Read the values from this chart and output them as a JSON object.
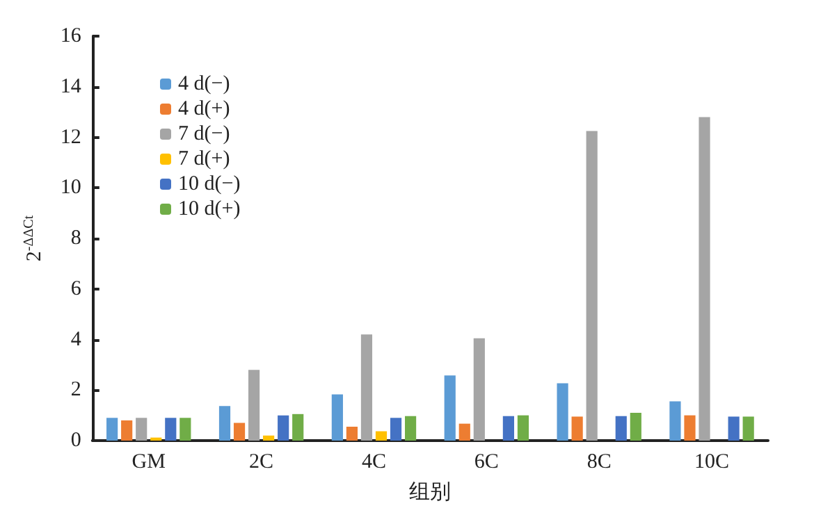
{
  "chart_data": {
    "type": "bar",
    "xlabel": "组别",
    "ylabel": "2$^{-ΔΔCt}$",
    "categories": [
      "GM",
      "2C",
      "4C",
      "6C",
      "8C",
      "10C"
    ],
    "series": [
      {
        "name": "4 d(−)",
        "color": "#5b9bd5",
        "values": [
          0.9,
          1.37,
          1.83,
          2.58,
          2.27,
          1.55
        ]
      },
      {
        "name": "4 d(+)",
        "color": "#ed7d31",
        "values": [
          0.8,
          0.7,
          0.55,
          0.67,
          0.95,
          1.0
        ]
      },
      {
        "name": "7 d(−)",
        "color": "#a5a5a5",
        "values": [
          0.9,
          2.8,
          4.2,
          4.05,
          12.25,
          12.8
        ]
      },
      {
        "name": "7 d(+)",
        "color": "#ffc000",
        "values": [
          0.12,
          0.2,
          0.37,
          null,
          null,
          null
        ]
      },
      {
        "name": "10 d(−)",
        "color": "#4472c4",
        "values": [
          0.9,
          1.0,
          0.9,
          0.97,
          0.97,
          0.95
        ]
      },
      {
        "name": "10 d(+)",
        "color": "#70ad47",
        "values": [
          0.9,
          1.05,
          0.97,
          1.0,
          1.1,
          0.95
        ]
      }
    ],
    "ylim": [
      0,
      16
    ],
    "yticks": [
      0,
      2,
      4,
      6,
      8,
      10,
      12,
      14,
      16
    ],
    "grid": false,
    "legend": "top left"
  }
}
